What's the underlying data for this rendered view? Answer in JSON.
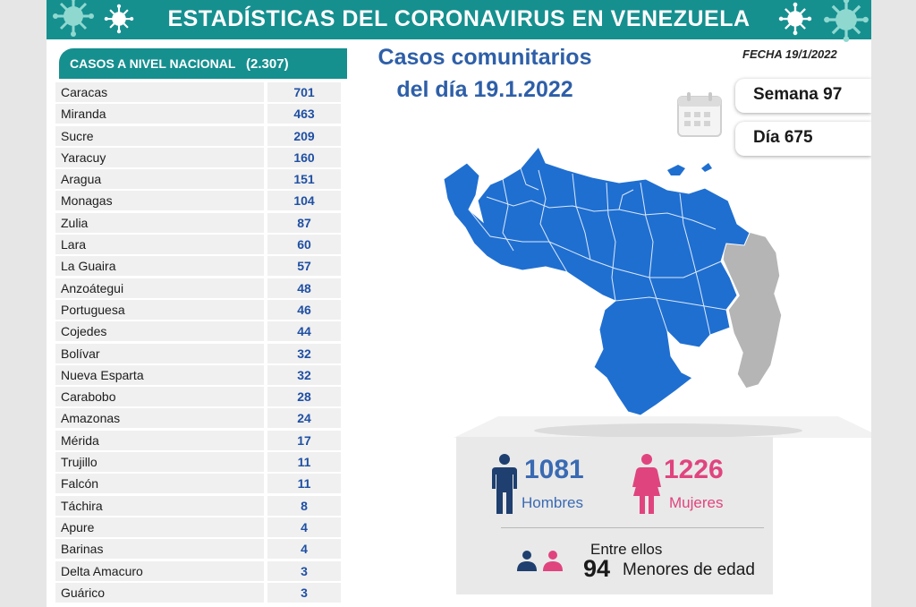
{
  "banner": {
    "title": "ESTADÍSTICAS DEL CORONAVIRUS EN VENEZUELA"
  },
  "national": {
    "label": "CASOS A NIVEL NACIONAL",
    "total": "(2.307)",
    "states": [
      {
        "name": "Caracas",
        "count": "701"
      },
      {
        "name": "Miranda",
        "count": "463"
      },
      {
        "name": "Sucre",
        "count": "209"
      },
      {
        "name": "Yaracuy",
        "count": "160"
      },
      {
        "name": "Aragua",
        "count": "151"
      },
      {
        "name": "Monagas",
        "count": "104"
      },
      {
        "name": "Zulia",
        "count": "87"
      },
      {
        "name": "Lara",
        "count": "60"
      },
      {
        "name": "La Guaira",
        "count": "57"
      },
      {
        "name": "Anzoátegui",
        "count": "48"
      },
      {
        "name": "Portuguesa",
        "count": "46"
      },
      {
        "name": "Cojedes",
        "count": "44"
      },
      {
        "name": "Bolívar",
        "count": "32"
      },
      {
        "name": "Nueva Esparta",
        "count": "32"
      },
      {
        "name": "Carabobo",
        "count": "28"
      },
      {
        "name": "Amazonas",
        "count": "24"
      },
      {
        "name": "Mérida",
        "count": "17"
      },
      {
        "name": "Trujillo",
        "count": "11"
      },
      {
        "name": "Falcón",
        "count": "11"
      },
      {
        "name": "Táchira",
        "count": "8"
      },
      {
        "name": "Apure",
        "count": "4"
      },
      {
        "name": "Barinas",
        "count": "4"
      },
      {
        "name": "Delta Amacuro",
        "count": "3"
      },
      {
        "name": "Guárico",
        "count": "3"
      }
    ]
  },
  "header": {
    "title_line1": "Casos comunitarios",
    "title_line2": "del día 19.1.2022",
    "fecha": "FECHA 19/1/2022",
    "semana": "Semana 97",
    "dia": "Día 675"
  },
  "gender": {
    "men_count": "1081",
    "men_label": "Hombres",
    "women_count": "1226",
    "women_label": "Mujeres"
  },
  "minors": {
    "intro": "Entre ellos",
    "count": "94",
    "label": "Menores de edad"
  },
  "colors": {
    "teal": "#168f8f",
    "map_blue": "#1f6fd1",
    "men_blue": "#3a6ab3",
    "women_pink": "#e0447e",
    "count_blue": "#1f4fa3"
  },
  "icons": [
    "virus-icon",
    "calendar-icon",
    "man-icon",
    "woman-icon",
    "minors-icon",
    "venezuela-map"
  ]
}
